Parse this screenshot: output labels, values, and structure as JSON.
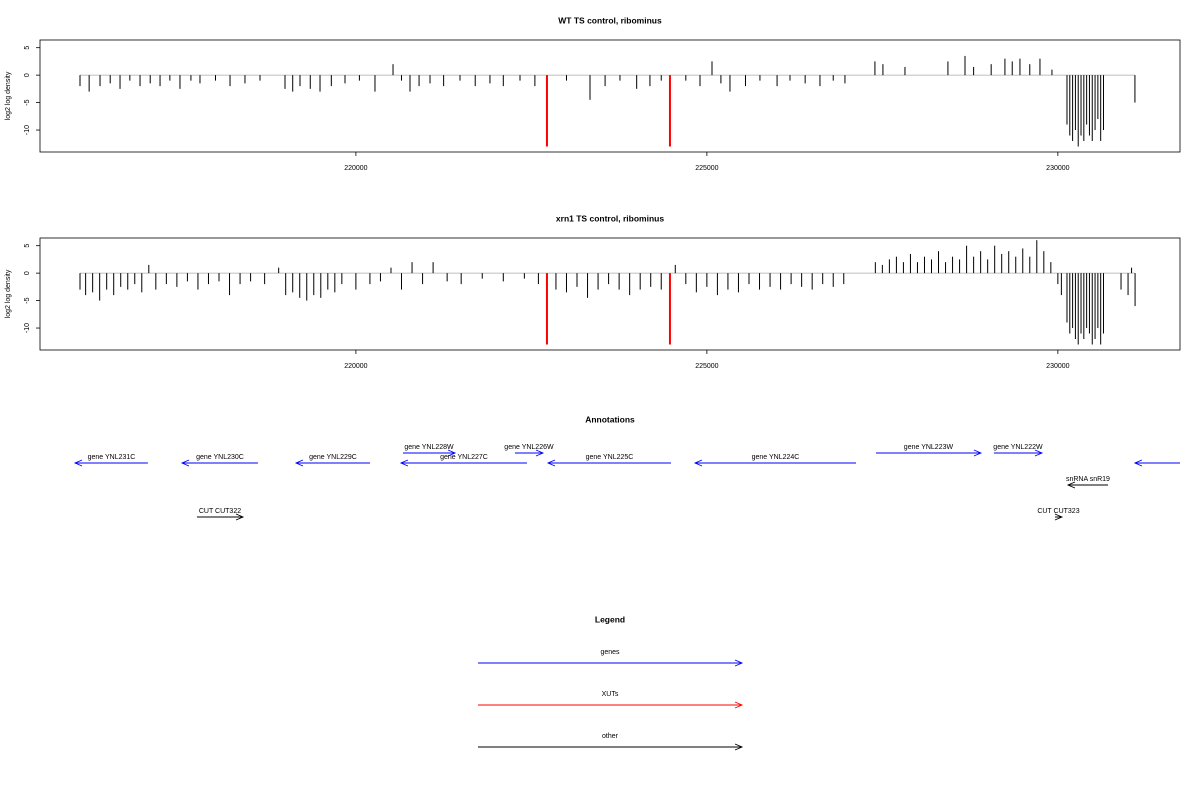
{
  "chart_data": [
    {
      "type": "bar",
      "title": "WT TS control, ribominus",
      "ylabel": "log2 log density",
      "xlim": [
        215500,
        231740
      ],
      "ylim": [
        -14,
        6.4
      ],
      "xticks": [
        220000,
        225000,
        230000
      ],
      "yticks": [
        5,
        0,
        -5,
        -10
      ],
      "series": [
        {
          "color": "#000000",
          "x": [
            216070,
            216200,
            216355,
            216500,
            216640,
            216780,
            216925,
            217070,
            217210,
            217350,
            217494,
            217650,
            217779,
            218000,
            218207,
            218420,
            218634,
            218990,
            219100,
            219204,
            219350,
            219489,
            219650,
            219845,
            220050,
            220272,
            220529,
            220650,
            220771,
            220900,
            221056,
            221250,
            221483,
            221700,
            221910,
            222100,
            222338,
            222550,
            223000,
            223335,
            223550,
            223762,
            224000,
            224189,
            224350,
            224700,
            224902,
            225073,
            225200,
            225329,
            225550,
            225756,
            226000,
            226184,
            226400,
            226611,
            226800,
            226967,
            227394,
            227508,
            227822,
            228434,
            228677,
            228800,
            229050,
            229246,
            229350,
            229460,
            229600,
            229745,
            229916,
            230130,
            230170,
            230210,
            230250,
            230290,
            230330,
            230370,
            230410,
            230450,
            230490,
            230530,
            230570,
            230610,
            230650,
            231098
          ],
          "values": [
            -2,
            -3,
            -2,
            -1.5,
            -2.5,
            -1,
            -2,
            -1.5,
            -2,
            -1,
            -2.5,
            -1,
            -1.5,
            -1,
            -2,
            -1.5,
            -1,
            -2.5,
            -3,
            -2,
            -2.5,
            -3,
            -2,
            -1.5,
            -1,
            -3,
            2,
            -1,
            -3,
            -2,
            -1.5,
            -2,
            -1,
            -2,
            -1.5,
            -2,
            -1,
            -2,
            -1,
            -4.5,
            -2,
            -1,
            -2.5,
            -2,
            -1,
            -1,
            -2,
            2.5,
            -1.5,
            -3,
            -2,
            -1,
            -2,
            -1,
            -1.5,
            -2,
            -1,
            -1.5,
            2.5,
            2,
            1.5,
            2.5,
            3.5,
            1.5,
            2,
            3,
            2.5,
            3,
            2,
            3,
            1,
            -9,
            -11,
            -12,
            -10,
            -13,
            -11,
            -12,
            -9,
            -11,
            -12,
            -10,
            -8,
            -12,
            -10,
            -5
          ]
        },
        {
          "color": "#ff0000",
          "x": [
            222722,
            224474
          ],
          "values": [
            -13,
            -13
          ]
        }
      ]
    },
    {
      "type": "bar",
      "title": "xrn1 TS control, ribominus",
      "ylabel": "log2 log density",
      "xlim": [
        215500,
        231740
      ],
      "ylim": [
        -14,
        6.4
      ],
      "xticks": [
        220000,
        225000,
        230000
      ],
      "yticks": [
        5,
        0,
        -5,
        -10
      ],
      "series": [
        {
          "color": "#000000",
          "x": [
            216070,
            216150,
            216250,
            216350,
            216450,
            216550,
            216650,
            216750,
            216850,
            216950,
            217050,
            217150,
            217300,
            217450,
            217600,
            217750,
            217900,
            218050,
            218200,
            218350,
            218500,
            218700,
            218900,
            219000,
            219100,
            219200,
            219300,
            219400,
            219500,
            219600,
            219700,
            219800,
            220000,
            220200,
            220350,
            220500,
            220650,
            220800,
            220950,
            221100,
            221300,
            221500,
            221800,
            222100,
            222400,
            222600,
            222850,
            223000,
            223150,
            223300,
            223450,
            223600,
            223750,
            223900,
            224050,
            224200,
            224350,
            224550,
            224700,
            224850,
            225000,
            225150,
            225300,
            225450,
            225600,
            225750,
            225900,
            226050,
            226200,
            226350,
            226500,
            226650,
            226800,
            226950,
            227400,
            227500,
            227600,
            227700,
            227800,
            227900,
            228000,
            228100,
            228200,
            228300,
            228400,
            228500,
            228600,
            228700,
            228800,
            228900,
            229000,
            229100,
            229200,
            229300,
            229400,
            229500,
            229600,
            229700,
            229800,
            229900,
            230000,
            230050,
            230130,
            230170,
            230210,
            230250,
            230290,
            230330,
            230370,
            230410,
            230450,
            230490,
            230530,
            230570,
            230610,
            230650,
            230900,
            231000,
            231050,
            231100
          ],
          "values": [
            -3,
            -4,
            -3.5,
            -5,
            -3,
            -4,
            -2.5,
            -3,
            -2,
            -3.5,
            1.5,
            -3,
            -2,
            -2.5,
            -1.5,
            -3,
            -2,
            -1.5,
            -4,
            -2,
            -1.5,
            -2,
            1,
            -4,
            -3.5,
            -4.5,
            -5,
            -4,
            -4.5,
            -3,
            -3.5,
            -2,
            -3,
            -2,
            -1.5,
            1,
            -3,
            2,
            -2,
            2,
            -1.5,
            -2,
            -1,
            -1.5,
            -1,
            -2,
            -3,
            -3.5,
            -2.5,
            -4.5,
            -3,
            -2,
            -3,
            -4,
            -3,
            -2.5,
            -3,
            1.5,
            -2,
            -3.5,
            -2.5,
            -4,
            -3,
            -3.5,
            -2,
            -3,
            -2.5,
            -3,
            -2,
            -2.5,
            -3,
            -2,
            -2.5,
            -2,
            2,
            1.5,
            2.5,
            3,
            2,
            3.5,
            2,
            3,
            2.5,
            4,
            2,
            3,
            2.5,
            5,
            3,
            4,
            2.5,
            5,
            3.5,
            4,
            3,
            4.5,
            3,
            6,
            4,
            2,
            -2,
            -4,
            -9,
            -11,
            -10,
            -12,
            -13,
            -11,
            -12,
            -10,
            -11,
            -13,
            -12,
            -10,
            -13,
            -11,
            -3,
            -4,
            1,
            -6
          ]
        },
        {
          "color": "#ff0000",
          "x": [
            222722,
            224474
          ],
          "values": [
            -13,
            -13
          ]
        }
      ]
    },
    {
      "type": "annotation",
      "title": "Annotations",
      "xlim": [
        215500,
        231740
      ],
      "features": [
        {
          "label": "gene YNL231C",
          "kind": "gene",
          "strand": "-",
          "start": 215999,
          "end": 217037,
          "color": "#0000ff"
        },
        {
          "label": "gene YNL230C",
          "kind": "gene",
          "strand": "-",
          "start": 217523,
          "end": 218605,
          "color": "#0000ff"
        },
        {
          "label": "gene YNL229C",
          "kind": "gene",
          "strand": "-",
          "start": 219147,
          "end": 220201,
          "color": "#0000ff"
        },
        {
          "label": "gene YNL228W",
          "kind": "gene",
          "strand": "+",
          "start": 220671,
          "end": 221412,
          "color": "#0000ff"
        },
        {
          "label": "gene YNL227C",
          "kind": "gene",
          "strand": "-",
          "start": 220642,
          "end": 222437,
          "color": "#0000ff"
        },
        {
          "label": "gene YNL226W",
          "kind": "gene",
          "strand": "+",
          "start": 222266,
          "end": 222665,
          "color": "#0000ff"
        },
        {
          "label": "gene YNL225C",
          "kind": "gene",
          "strand": "-",
          "start": 222737,
          "end": 224489,
          "color": "#0000ff"
        },
        {
          "label": "gene YNL224C",
          "kind": "gene",
          "strand": "-",
          "start": 224831,
          "end": 227124,
          "color": "#0000ff"
        },
        {
          "label": "gene YNL223W",
          "kind": "gene",
          "strand": "+",
          "start": 227409,
          "end": 228904,
          "color": "#0000ff"
        },
        {
          "label": "gene YNL222W",
          "kind": "gene",
          "strand": "+",
          "start": 229090,
          "end": 229773,
          "color": "#0000ff"
        },
        {
          "label": null,
          "kind": "gene",
          "strand": "-",
          "start": 231098,
          "end": 231740,
          "color": "#0000ff"
        },
        {
          "label": "snRNA snR19",
          "kind": "snRNA",
          "strand": "-",
          "start": 230144,
          "end": 230714,
          "color": "#000000"
        },
        {
          "label": "CUT CUT322",
          "kind": "CUT",
          "strand": "+",
          "start": 217736,
          "end": 218392,
          "color": "#000000"
        },
        {
          "label": "CUT CUT323",
          "kind": "CUT",
          "strand": "+",
          "start": 229959,
          "end": 230058,
          "color": "#000000"
        }
      ]
    },
    {
      "type": "legend",
      "title": "Legend",
      "entries": [
        {
          "name": "genes",
          "color": "#0000ff"
        },
        {
          "name": "XUTs",
          "color": "#ff0000"
        },
        {
          "name": "other",
          "color": "#000000"
        }
      ]
    }
  ]
}
